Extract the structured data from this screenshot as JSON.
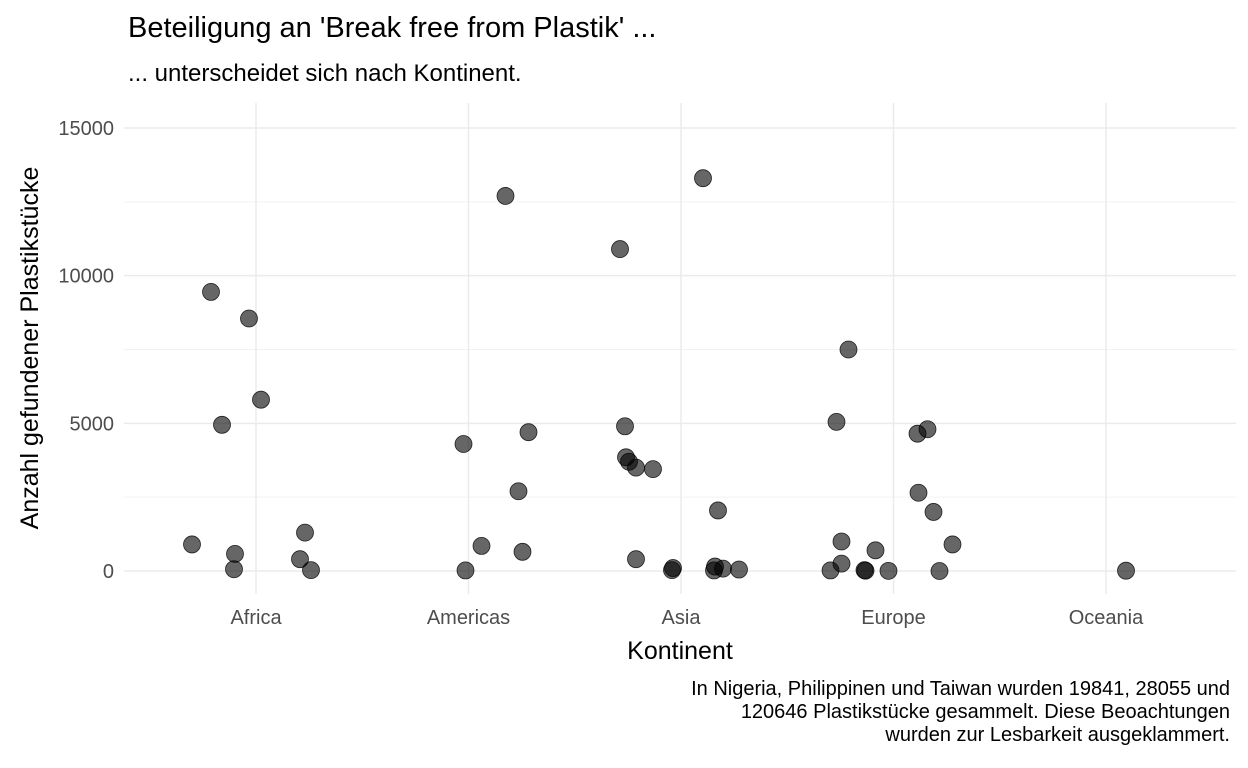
{
  "chart_data": {
    "type": "scatter",
    "title": "Beteiligung an 'Break free from Plastik' ...",
    "subtitle": "... unterscheidet sich nach Kontinent.",
    "xlabel": "Kontinent",
    "ylabel": "Anzahl gefundener Plastikstücke",
    "categories": [
      "Africa",
      "Americas",
      "Asia",
      "Europe",
      "Oceania"
    ],
    "ylim": [
      -800,
      15800
    ],
    "yticks": [
      0,
      5000,
      10000,
      15000
    ],
    "grid": true,
    "point_color": "#000000",
    "point_opacity": 0.6,
    "caption": [
      "In Nigeria, Philippinen und Taiwan wurden 19841, 28055 und",
      "120646 Plastikstücke gesammelt. Diese Beoachtungen",
      "wurden zur Lesbarkeit ausgeklammert."
    ],
    "series": [
      {
        "points": [
          {
            "x": "Africa",
            "y": 9450
          },
          {
            "x": "Africa",
            "y": 8550
          },
          {
            "x": "Africa",
            "y": 5800
          },
          {
            "x": "Africa",
            "y": 4950
          },
          {
            "x": "Africa",
            "y": 1300
          },
          {
            "x": "Africa",
            "y": 900
          },
          {
            "x": "Africa",
            "y": 580
          },
          {
            "x": "Africa",
            "y": 400
          },
          {
            "x": "Africa",
            "y": 60
          },
          {
            "x": "Africa",
            "y": 30
          },
          {
            "x": "Americas",
            "y": 12700
          },
          {
            "x": "Americas",
            "y": 4700
          },
          {
            "x": "Americas",
            "y": 4300
          },
          {
            "x": "Americas",
            "y": 2700
          },
          {
            "x": "Americas",
            "y": 850
          },
          {
            "x": "Americas",
            "y": 650
          },
          {
            "x": "Americas",
            "y": 20
          },
          {
            "x": "Asia",
            "y": 13300
          },
          {
            "x": "Asia",
            "y": 10900
          },
          {
            "x": "Asia",
            "y": 4900
          },
          {
            "x": "Asia",
            "y": 3850
          },
          {
            "x": "Asia",
            "y": 3700
          },
          {
            "x": "Asia",
            "y": 3500
          },
          {
            "x": "Asia",
            "y": 3450
          },
          {
            "x": "Asia",
            "y": 2050
          },
          {
            "x": "Asia",
            "y": 400
          },
          {
            "x": "Asia",
            "y": 150
          },
          {
            "x": "Asia",
            "y": 100
          },
          {
            "x": "Asia",
            "y": 80
          },
          {
            "x": "Asia",
            "y": 50
          },
          {
            "x": "Asia",
            "y": 30
          },
          {
            "x": "Asia",
            "y": 20
          },
          {
            "x": "Europe",
            "y": 7500
          },
          {
            "x": "Europe",
            "y": 5050
          },
          {
            "x": "Europe",
            "y": 4800
          },
          {
            "x": "Europe",
            "y": 4650
          },
          {
            "x": "Europe",
            "y": 2650
          },
          {
            "x": "Europe",
            "y": 2000
          },
          {
            "x": "Europe",
            "y": 1000
          },
          {
            "x": "Europe",
            "y": 900
          },
          {
            "x": "Europe",
            "y": 700
          },
          {
            "x": "Europe",
            "y": 250
          },
          {
            "x": "Europe",
            "y": 30
          },
          {
            "x": "Europe",
            "y": 20
          },
          {
            "x": "Europe",
            "y": 10
          },
          {
            "x": "Europe",
            "y": 5
          },
          {
            "x": "Europe",
            "y": 0
          },
          {
            "x": "Oceania",
            "y": 10
          }
        ]
      }
    ]
  }
}
